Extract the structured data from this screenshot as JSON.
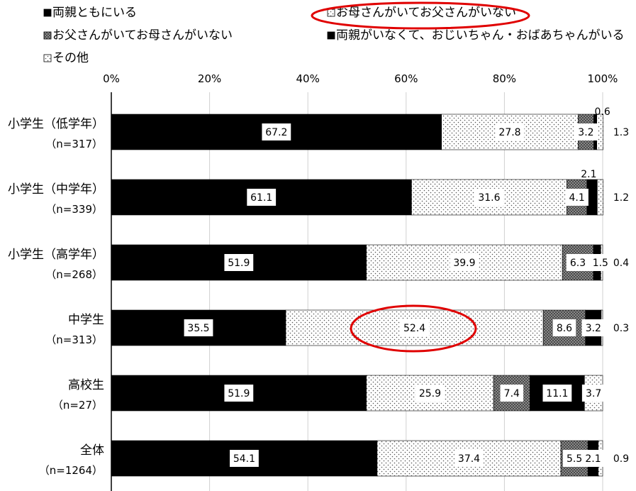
{
  "chart_data": {
    "type": "bar",
    "orientation": "horizontal",
    "stacked": "percent",
    "xlim": [
      0,
      100
    ],
    "x_ticks": [
      "0%",
      "20%",
      "40%",
      "60%",
      "80%",
      "100%"
    ],
    "grid": true,
    "legend_position": "top",
    "categories": [
      "小学生（低学年）",
      "小学生（中学年）",
      "小学生（高学年）",
      "中学生",
      "高校生",
      "全体"
    ],
    "category_n": [
      "（n=317）",
      "（n=339）",
      "（n=268）",
      "（n=313）",
      "（n=27）",
      "（n=1264）"
    ],
    "series": [
      {
        "name": "両親ともにいる",
        "values": [
          67.2,
          61.1,
          51.9,
          35.5,
          51.9,
          54.1
        ],
        "labels": [
          "67.2",
          "61.1",
          "51.9",
          "35.5",
          "51.9",
          "54.1"
        ],
        "color": "#000000",
        "pattern": "solid"
      },
      {
        "name": "お母さんがいてお父さんがいない",
        "values": [
          27.8,
          31.6,
          39.9,
          52.4,
          25.9,
          37.4
        ],
        "labels": [
          "27.8",
          "31.6",
          "39.9",
          "52.4",
          "25.9",
          "37.4"
        ],
        "color": "#ffffff",
        "pattern": "dots"
      },
      {
        "name": "お父さんがいてお母さんがいない",
        "values": [
          3.2,
          4.1,
          6.3,
          8.6,
          7.4,
          5.5
        ],
        "labels": [
          "3.2",
          "4.1",
          "6.3",
          "8.6",
          "7.4",
          "5.5"
        ],
        "color": "#808080",
        "pattern": "crosshatch"
      },
      {
        "name": "両親がいなくて、おじいちゃん・おばあちゃんがいる",
        "values": [
          0.6,
          2.1,
          1.5,
          3.2,
          11.1,
          2.1
        ],
        "labels": [
          "0.6",
          "2.1",
          "1.5",
          "3.2",
          "11.1",
          "2.1"
        ],
        "color": "#000000",
        "pattern": "solid"
      },
      {
        "name": "その他",
        "values": [
          1.3,
          1.2,
          0.4,
          0.3,
          3.7,
          0.9
        ],
        "labels": [
          "1.3",
          "1.2",
          "0.4",
          "0.3",
          "3.7",
          "0.9"
        ],
        "color": "#ffffff",
        "pattern": "dots"
      }
    ],
    "highlight_color": "#e00000"
  }
}
